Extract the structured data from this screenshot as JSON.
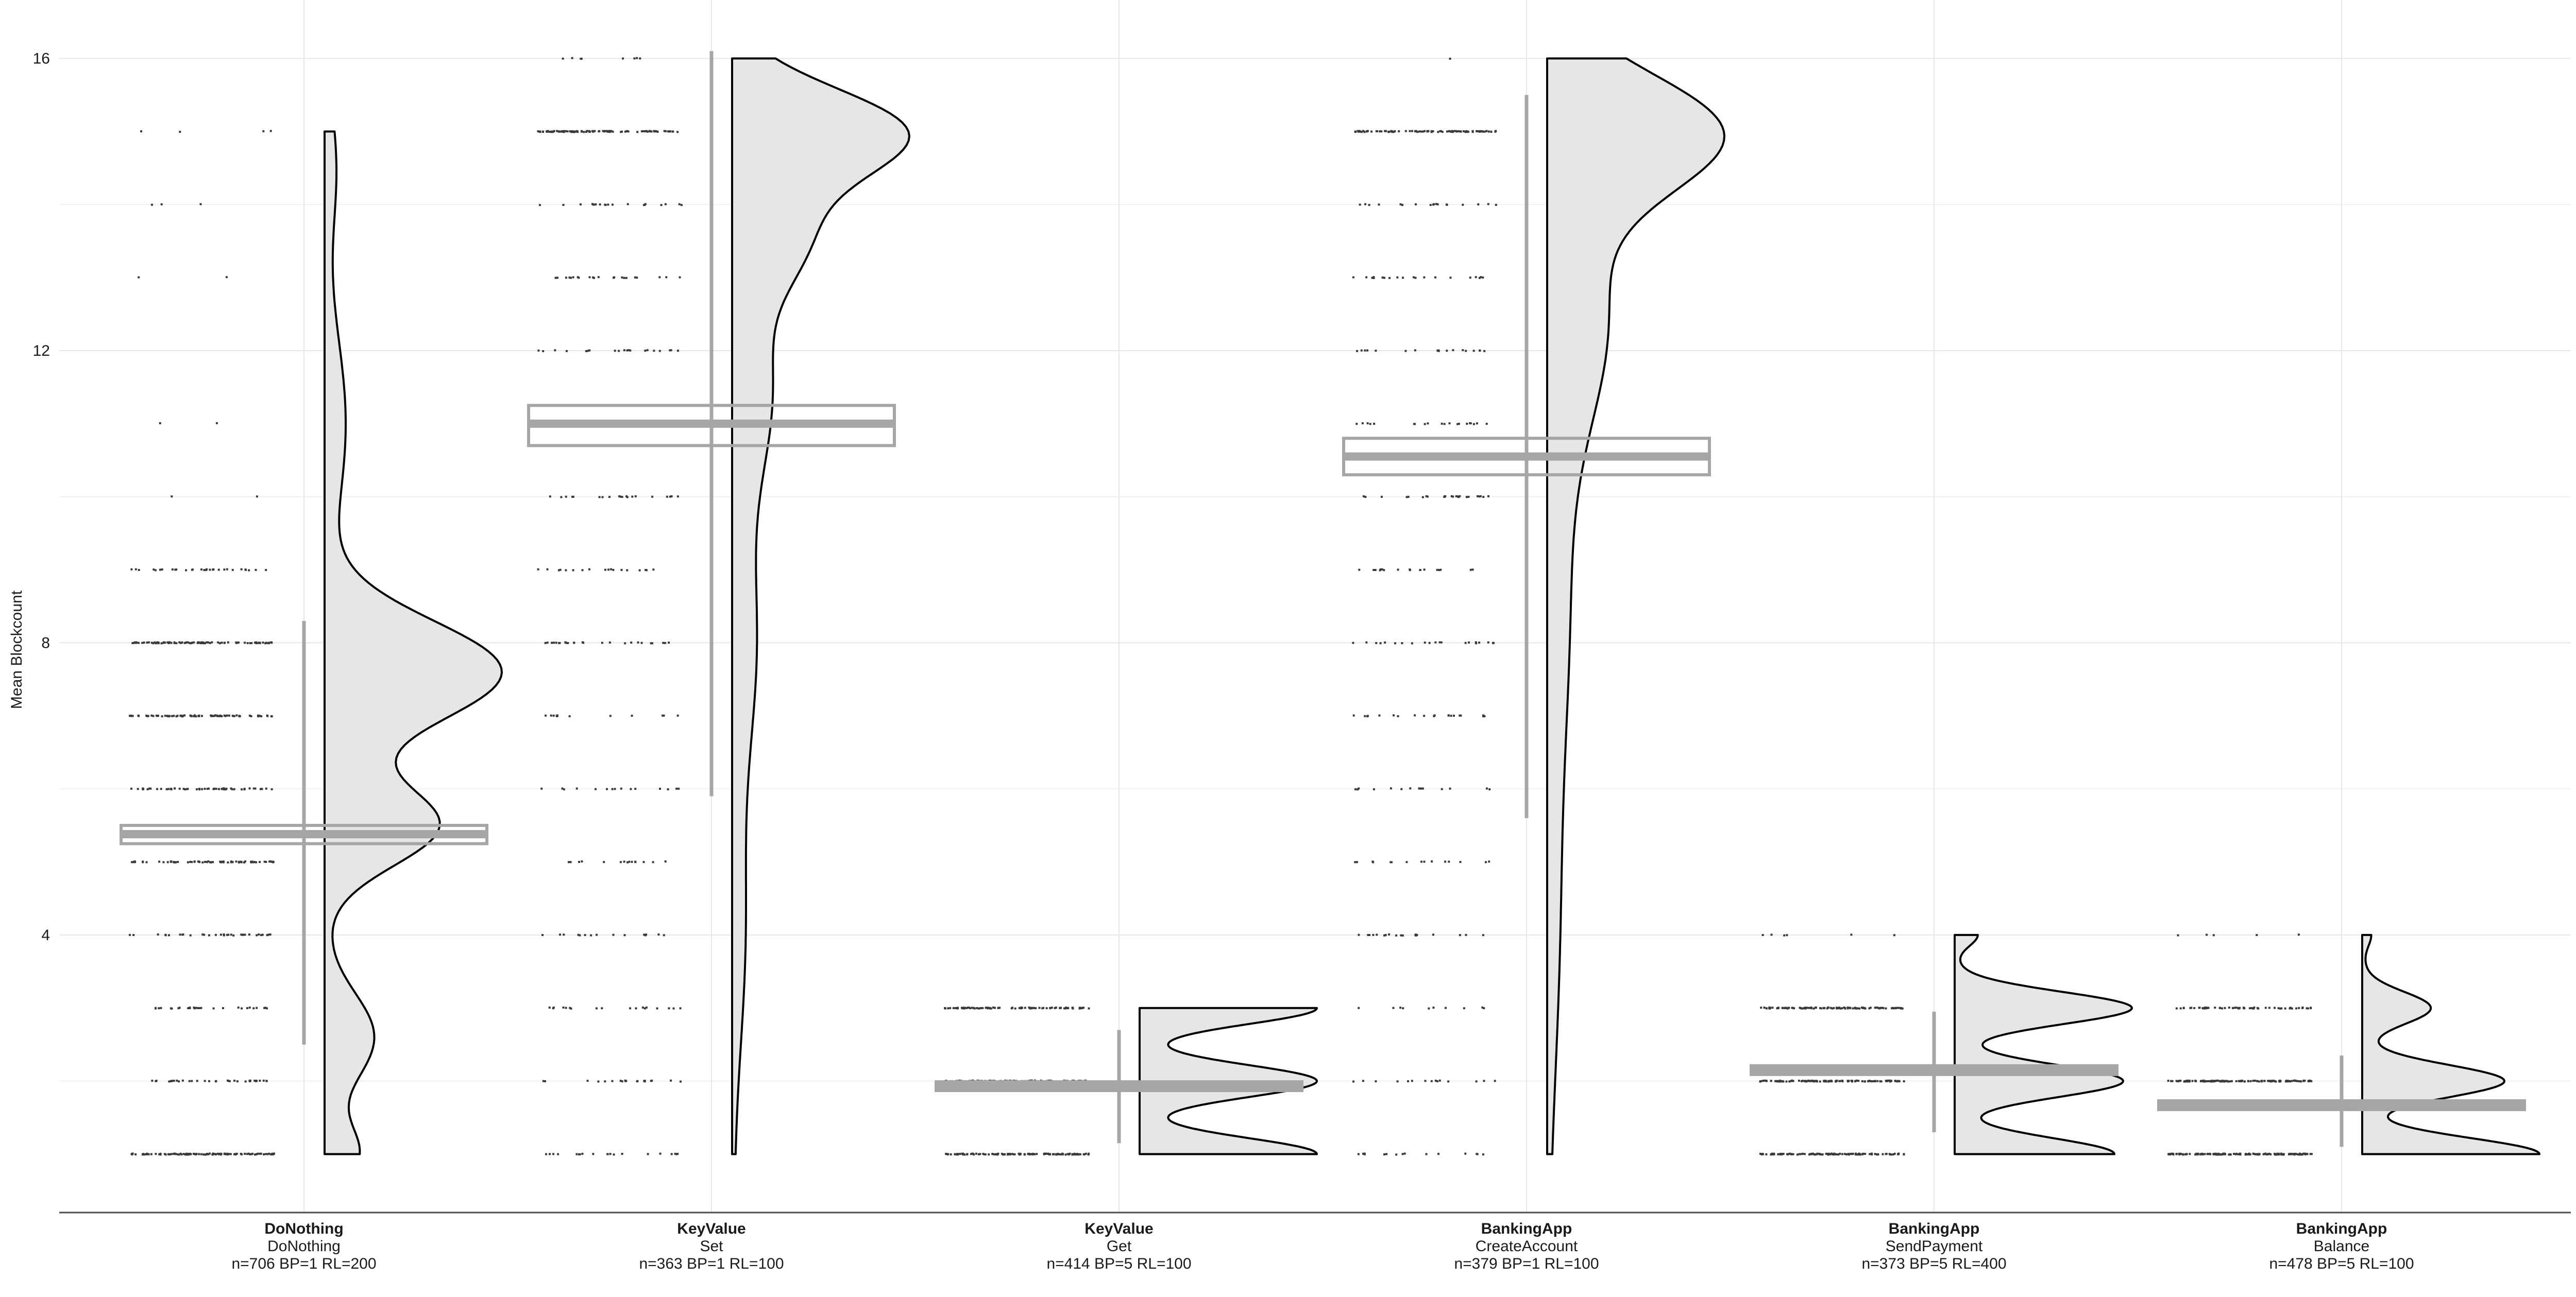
{
  "chart_data": {
    "type": "raincloud",
    "title": "",
    "xlabel": "",
    "ylabel": "Mean Blockcount",
    "ylim": [
      0.2,
      16.8
    ],
    "yticks": [
      4,
      8,
      12,
      16
    ],
    "grid": true,
    "colors": {
      "gridline": "#e6e6e6",
      "box_outline": "#a6a6a6",
      "median_fill": "#a6a6a6",
      "whisker": "#a6a6a6",
      "density_fill": "#e6e6e6",
      "density_stroke": "#000000",
      "points": "#3a3a3a",
      "axis": "#4d4d4d"
    },
    "categories": [
      {
        "app": "DoNothing",
        "operation": "DoNothing",
        "info": "n=706 BP=1 RL=200",
        "box": {
          "q1": 5.25,
          "median": 5.38,
          "q3": 5.5
        },
        "whisker": [
          2.5,
          8.3
        ],
        "density_range": [
          1,
          15
        ],
        "density_modes": [
          {
            "y": 7.6,
            "w": 0.55,
            "s": 0.7
          },
          {
            "y": 5.5,
            "w": 0.35,
            "s": 0.55
          },
          {
            "y": 2.6,
            "w": 0.15,
            "s": 0.6
          },
          {
            "y": 1.0,
            "w": 0.1,
            "s": 0.4
          },
          {
            "y": 11.0,
            "w": 0.06,
            "s": 1.2
          },
          {
            "y": 14.5,
            "w": 0.03,
            "s": 0.8
          }
        ],
        "points": [
          {
            "y": 1,
            "n": 110
          },
          {
            "y": 2,
            "n": 35
          },
          {
            "y": 3,
            "n": 28
          },
          {
            "y": 4,
            "n": 35
          },
          {
            "y": 5,
            "n": 70
          },
          {
            "y": 6,
            "n": 55
          },
          {
            "y": 7,
            "n": 80
          },
          {
            "y": 8,
            "n": 95
          },
          {
            "y": 9,
            "n": 30
          },
          {
            "y": 10,
            "n": 2
          },
          {
            "y": 11,
            "n": 2
          },
          {
            "y": 13,
            "n": 2
          },
          {
            "y": 14,
            "n": 3
          },
          {
            "y": 15,
            "n": 4
          }
        ]
      },
      {
        "app": "KeyValue",
        "operation": "Set",
        "info": "n=363 BP=1 RL=100",
        "box": {
          "q1": 10.7,
          "median": 11.0,
          "q3": 11.25
        },
        "whisker": [
          5.9,
          16.1
        ],
        "density_range": [
          1,
          16
        ],
        "density_modes": [
          {
            "y": 15.0,
            "w": 0.9,
            "s": 0.6
          },
          {
            "y": 13.6,
            "w": 0.35,
            "s": 0.7
          },
          {
            "y": 11.5,
            "w": 0.2,
            "s": 1.2
          },
          {
            "y": 8.0,
            "w": 0.12,
            "s": 1.5
          },
          {
            "y": 4.0,
            "w": 0.06,
            "s": 1.5
          }
        ],
        "points": [
          {
            "y": 1,
            "n": 20
          },
          {
            "y": 2,
            "n": 20
          },
          {
            "y": 3,
            "n": 18
          },
          {
            "y": 4,
            "n": 15
          },
          {
            "y": 5,
            "n": 15
          },
          {
            "y": 6,
            "n": 15
          },
          {
            "y": 7,
            "n": 12
          },
          {
            "y": 8,
            "n": 25
          },
          {
            "y": 9,
            "n": 18
          },
          {
            "y": 10,
            "n": 20
          },
          {
            "y": 11,
            "n": 25
          },
          {
            "y": 12,
            "n": 20
          },
          {
            "y": 13,
            "n": 22
          },
          {
            "y": 14,
            "n": 20
          },
          {
            "y": 15,
            "n": 110
          },
          {
            "y": 16,
            "n": 8
          }
        ]
      },
      {
        "app": "KeyValue",
        "operation": "Get",
        "info": "n=414 BP=5 RL=100",
        "box": {
          "q1": 1.87,
          "median": 1.93,
          "q3": 1.99
        },
        "whisker": [
          1.15,
          2.7
        ],
        "density_range": [
          1,
          3
        ],
        "density_modes": [
          {
            "y": 1.0,
            "w": 1.0,
            "s": 0.22
          },
          {
            "y": 2.0,
            "w": 1.0,
            "s": 0.22
          },
          {
            "y": 3.0,
            "w": 1.0,
            "s": 0.22
          }
        ],
        "points": [
          {
            "y": 1,
            "n": 120
          },
          {
            "y": 2,
            "n": 110
          },
          {
            "y": 3,
            "n": 90
          }
        ]
      },
      {
        "app": "BankingApp",
        "operation": "CreateAccount",
        "info": "n=379 BP=1 RL=100",
        "box": {
          "q1": 10.3,
          "median": 10.55,
          "q3": 10.8
        },
        "whisker": [
          5.6,
          15.5
        ],
        "density_range": [
          1,
          16
        ],
        "density_modes": [
          {
            "y": 15.0,
            "w": 1.0,
            "s": 0.8
          },
          {
            "y": 12.5,
            "w": 0.35,
            "s": 1.5
          },
          {
            "y": 8.5,
            "w": 0.12,
            "s": 2.0
          },
          {
            "y": 4.0,
            "w": 0.06,
            "s": 2.0
          }
        ],
        "points": [
          {
            "y": 1,
            "n": 15
          },
          {
            "y": 2,
            "n": 15
          },
          {
            "y": 3,
            "n": 10
          },
          {
            "y": 4,
            "n": 20
          },
          {
            "y": 5,
            "n": 15
          },
          {
            "y": 6,
            "n": 15
          },
          {
            "y": 7,
            "n": 20
          },
          {
            "y": 8,
            "n": 22
          },
          {
            "y": 9,
            "n": 18
          },
          {
            "y": 10,
            "n": 25
          },
          {
            "y": 11,
            "n": 20
          },
          {
            "y": 12,
            "n": 18
          },
          {
            "y": 13,
            "n": 20
          },
          {
            "y": 14,
            "n": 18
          },
          {
            "y": 15,
            "n": 100
          },
          {
            "y": 16,
            "n": 1
          }
        ]
      },
      {
        "app": "BankingApp",
        "operation": "SendPayment",
        "info": "n=373 BP=5 RL=400",
        "box": {
          "q1": 2.09,
          "median": 2.15,
          "q3": 2.21
        },
        "whisker": [
          1.3,
          2.95
        ],
        "density_range": [
          1,
          4
        ],
        "density_modes": [
          {
            "y": 1.0,
            "w": 0.9,
            "s": 0.22
          },
          {
            "y": 2.0,
            "w": 0.95,
            "s": 0.22
          },
          {
            "y": 3.0,
            "w": 1.0,
            "s": 0.22
          },
          {
            "y": 4.0,
            "w": 0.12,
            "s": 0.15
          }
        ],
        "points": [
          {
            "y": 1,
            "n": 110
          },
          {
            "y": 2,
            "n": 120
          },
          {
            "y": 3,
            "n": 110
          },
          {
            "y": 4,
            "n": 6
          }
        ]
      },
      {
        "app": "BankingApp",
        "operation": "Balance",
        "info": "n=478 BP=5 RL=100",
        "box": {
          "q1": 1.61,
          "median": 1.67,
          "q3": 1.73
        },
        "whisker": [
          1.1,
          2.35
        ],
        "density_range": [
          1,
          4
        ],
        "density_modes": [
          {
            "y": 1.0,
            "w": 1.0,
            "s": 0.22
          },
          {
            "y": 2.0,
            "w": 0.8,
            "s": 0.22
          },
          {
            "y": 3.0,
            "w": 0.38,
            "s": 0.22
          },
          {
            "y": 4.0,
            "w": 0.04,
            "s": 0.15
          }
        ],
        "points": [
          {
            "y": 1,
            "n": 150
          },
          {
            "y": 2,
            "n": 130
          },
          {
            "y": 3,
            "n": 60
          },
          {
            "y": 4,
            "n": 5
          }
        ]
      }
    ]
  }
}
